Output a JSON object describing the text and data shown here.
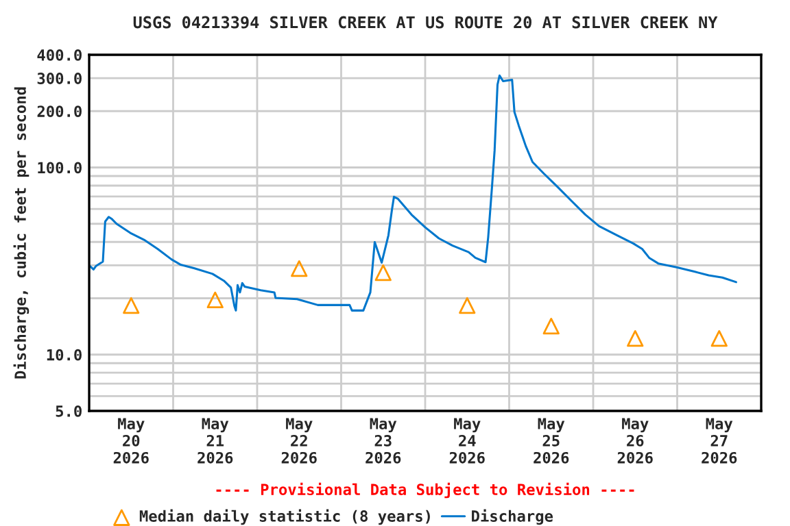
{
  "chart_data": {
    "type": "line",
    "title": "USGS 04213394 SILVER CREEK AT US ROUTE 20 AT SILVER CREEK NY",
    "ylabel": "Discharge, cubic feet per second",
    "annotations": [
      "---- Provisional Data Subject to Revision ----"
    ],
    "log": "y",
    "grid": true,
    "legend": "bottom",
    "xlim": [
      "2026-05-20T00:00",
      "2026-05-28T00:00"
    ],
    "xticks": [
      {
        "value": "2026-05-20T00:00",
        "label": null
      },
      {
        "value": "2026-05-20T12:00",
        "label": "May\n20\n2026"
      },
      {
        "value": "2026-05-21T00:00",
        "label": null
      },
      {
        "value": "2026-05-21T12:00",
        "label": "May\n21\n2026"
      },
      {
        "value": "2026-05-22T00:00",
        "label": null
      },
      {
        "value": "2026-05-22T12:00",
        "label": "May\n22\n2026"
      },
      {
        "value": "2026-05-23T00:00",
        "label": null
      },
      {
        "value": "2026-05-23T12:00",
        "label": "May\n23\n2026"
      },
      {
        "value": "2026-05-24T00:00",
        "label": null
      },
      {
        "value": "2026-05-24T12:00",
        "label": "May\n24\n2026"
      },
      {
        "value": "2026-05-25T00:00",
        "label": null
      },
      {
        "value": "2026-05-25T12:00",
        "label": "May\n25\n2026"
      },
      {
        "value": "2026-05-26T00:00",
        "label": null
      },
      {
        "value": "2026-05-26T12:00",
        "label": "May\n26\n2026"
      },
      {
        "value": "2026-05-27T00:00",
        "label": null
      },
      {
        "value": "2026-05-27T12:00",
        "label": "May\n27\n2026"
      },
      {
        "value": "2026-05-28T00:00",
        "label": null
      }
    ],
    "ylim": [
      5,
      400
    ],
    "yticks": [
      {
        "value": 5,
        "label": "5.0"
      },
      {
        "value": 6,
        "label": null
      },
      {
        "value": 7,
        "label": null
      },
      {
        "value": 8,
        "label": null
      },
      {
        "value": 9,
        "label": null
      },
      {
        "value": 10,
        "label": "10.0"
      },
      {
        "value": 20,
        "label": null
      },
      {
        "value": 30,
        "label": null
      },
      {
        "value": 40,
        "label": null
      },
      {
        "value": 50,
        "label": null
      },
      {
        "value": 60,
        "label": null
      },
      {
        "value": 70,
        "label": null
      },
      {
        "value": 80,
        "label": null
      },
      {
        "value": 90,
        "label": null
      },
      {
        "value": 100,
        "label": "100.0"
      },
      {
        "value": 200,
        "label": "200.0"
      },
      {
        "value": 300,
        "label": "300.0"
      },
      {
        "value": 400,
        "label": "400.0"
      }
    ],
    "series": [
      {
        "name": "Median daily statistic (8 years)",
        "type": "scatter",
        "marker": "triangle",
        "color": "#ff9900",
        "x": [
          "2026-05-20T12:00",
          "2026-05-21T12:00",
          "2026-05-22T12:00",
          "2026-05-23T12:00",
          "2026-05-24T12:00",
          "2026-05-25T12:00",
          "2026-05-26T12:00",
          "2026-05-27T12:00"
        ],
        "values": [
          18.3,
          19.6,
          28.8,
          27.4,
          18.3,
          14.2,
          12.2,
          12.2
        ]
      },
      {
        "name": "Discharge",
        "marker": "none",
        "color": "#0077cc",
        "x": [
          "2026-05-20T00:15",
          "2026-05-20T01:15",
          "2026-05-20T02:00",
          "2026-05-20T03:55",
          "2026-05-20T04:35",
          "2026-05-20T05:35",
          "2026-05-20T06:30",
          "2026-05-20T07:50",
          "2026-05-20T11:45",
          "2026-05-20T15:40",
          "2026-05-20T19:35",
          "2026-05-20T23:30",
          "2026-05-21T02:10",
          "2026-05-21T06:05",
          "2026-05-21T11:15",
          "2026-05-21T14:30",
          "2026-05-21T16:30",
          "2026-05-21T17:30",
          "2026-05-21T17:55",
          "2026-05-21T18:25",
          "2026-05-21T19:05",
          "2026-05-21T19:45",
          "2026-05-21T20:25",
          "2026-05-22T01:00",
          "2026-05-22T04:55",
          "2026-05-22T05:15",
          "2026-05-22T11:25",
          "2026-05-22T17:20",
          "2026-05-23T02:25",
          "2026-05-23T03:05",
          "2026-05-23T06:20",
          "2026-05-23T08:20",
          "2026-05-23T09:35",
          "2026-05-23T11:35",
          "2026-05-23T13:30",
          "2026-05-23T14:30",
          "2026-05-23T15:05",
          "2026-05-23T16:10",
          "2026-05-23T20:05",
          "2026-05-24T00:00",
          "2026-05-24T03:55",
          "2026-05-24T07:50",
          "2026-05-24T12:25",
          "2026-05-24T14:20",
          "2026-05-24T17:15",
          "2026-05-24T18:00",
          "2026-05-24T19:05",
          "2026-05-24T19:50",
          "2026-05-24T20:40",
          "2026-05-24T21:15",
          "2026-05-24T22:15",
          "2026-05-25T00:50",
          "2026-05-25T01:30",
          "2026-05-25T02:45",
          "2026-05-25T04:45",
          "2026-05-25T06:40",
          "2026-05-25T09:55",
          "2026-05-25T13:55",
          "2026-05-25T17:50",
          "2026-05-25T21:45",
          "2026-05-26T01:40",
          "2026-05-26T06:50",
          "2026-05-26T11:25",
          "2026-05-26T14:00",
          "2026-05-26T16:00",
          "2026-05-26T18:35",
          "2026-05-26T23:50",
          "2026-05-27T05:05",
          "2026-05-27T09:00",
          "2026-05-27T12:55",
          "2026-05-27T16:50"
        ],
        "values": [
          29.7,
          28.5,
          29.8,
          31.4,
          51.4,
          54.4,
          53,
          50,
          44.7,
          41.1,
          36.7,
          32.3,
          30.2,
          28.9,
          27,
          24.8,
          22.8,
          18.2,
          17.2,
          23.5,
          21.5,
          24.1,
          23.1,
          22.1,
          21.5,
          20.1,
          19.8,
          18.4,
          18.4,
          17.2,
          17.2,
          21.5,
          39.9,
          31,
          43.4,
          59.3,
          69.7,
          68.1,
          56,
          47.9,
          41.8,
          38.2,
          35.3,
          32.9,
          31.2,
          42.3,
          78.4,
          123,
          277,
          310,
          289,
          294,
          198,
          167,
          130,
          107,
          92.7,
          78.4,
          66.2,
          56,
          48.6,
          43.4,
          39.3,
          36.7,
          32.9,
          30.7,
          29.3,
          27.7,
          26.5,
          25.8,
          24.4
        ]
      }
    ]
  }
}
